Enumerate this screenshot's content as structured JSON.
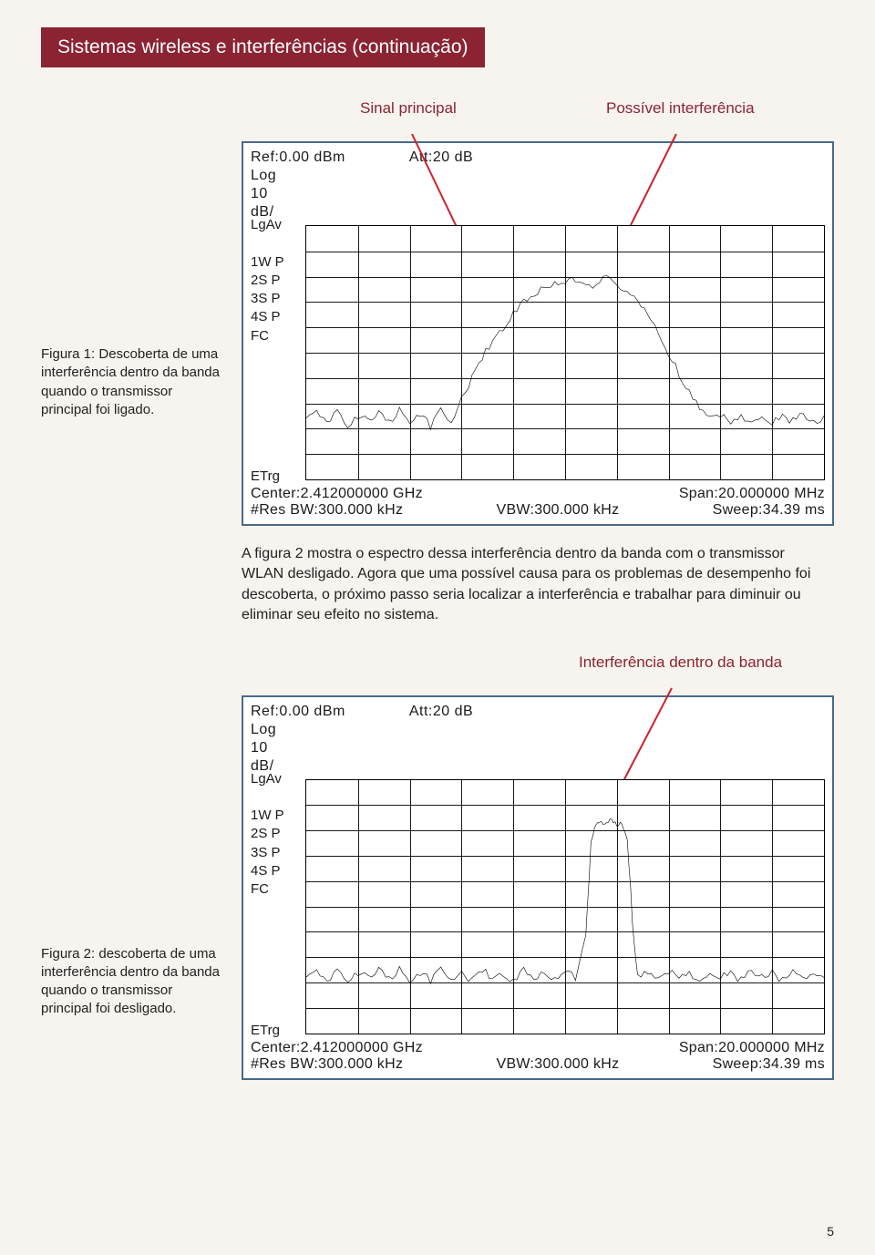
{
  "title": "Sistemas wireless e interferências (continuação)",
  "fig1": {
    "arrowLabels": {
      "left": "Sinal principal",
      "right": "Possível interferência"
    },
    "caption": "Figura 1: Descoberta de uma interferência dentro da banda quando o transmissor principal foi ligado.",
    "ref": "Ref:0.00 dBm",
    "att": "Att:20 dB",
    "scale": [
      "Log",
      "10",
      "dB/"
    ],
    "leftLabels": [
      "LgAv",
      "",
      "1W P",
      "2S P",
      "3S P",
      "4S P",
      "  FC"
    ],
    "etrg": "ETrg",
    "center": "Center:2.412000000 GHz",
    "span": "Span:20.000000 MHz",
    "rbw": "#Res BW:300.000 kHz",
    "vbw": "VBW:300.000 kHz",
    "sweep": "Sweep:34.39 ms",
    "grid": {
      "rows": 10,
      "cols": 10
    },
    "colors": {
      "border": "#4a6a88",
      "arrow": "#d0202a",
      "bg": "#ffffff"
    },
    "trace": [
      [
        0,
        76
      ],
      [
        2,
        74
      ],
      [
        4,
        78
      ],
      [
        6,
        73
      ],
      [
        8,
        79
      ],
      [
        10,
        75
      ],
      [
        12,
        77
      ],
      [
        14,
        74
      ],
      [
        16,
        78
      ],
      [
        18,
        72
      ],
      [
        20,
        78
      ],
      [
        22,
        74
      ],
      [
        24,
        79
      ],
      [
        26,
        73
      ],
      [
        28,
        77
      ],
      [
        30,
        68
      ],
      [
        32,
        60
      ],
      [
        34,
        52
      ],
      [
        36,
        45
      ],
      [
        38,
        40
      ],
      [
        40,
        34
      ],
      [
        42,
        30
      ],
      [
        44,
        27
      ],
      [
        46,
        24
      ],
      [
        48,
        23
      ],
      [
        50,
        22
      ],
      [
        52,
        21
      ],
      [
        54,
        22
      ],
      [
        56,
        24
      ],
      [
        58,
        20
      ],
      [
        60,
        23
      ],
      [
        62,
        26
      ],
      [
        64,
        30
      ],
      [
        66,
        35
      ],
      [
        68,
        42
      ],
      [
        70,
        50
      ],
      [
        72,
        58
      ],
      [
        74,
        66
      ],
      [
        76,
        72
      ],
      [
        78,
        76
      ],
      [
        80,
        74
      ],
      [
        82,
        78
      ],
      [
        84,
        75
      ],
      [
        86,
        77
      ],
      [
        88,
        74
      ],
      [
        90,
        78
      ],
      [
        92,
        75
      ],
      [
        94,
        77
      ],
      [
        96,
        74
      ],
      [
        98,
        78
      ],
      [
        100,
        76
      ]
    ],
    "noise": 3
  },
  "bodyText": "A figura 2 mostra o espectro dessa interferência dentro da banda com o transmissor WLAN desligado. Agora que uma possível causa para os problemas de desempenho foi descoberta, o próximo passo seria localizar a interferência e trabalhar para diminuir ou eliminar seu efeito no sistema.",
  "fig2": {
    "arrowLabel": "Interferência dentro da banda",
    "caption": "Figura 2: descoberta de uma interferência dentro da banda quando o transmissor principal foi desligado.",
    "ref": "Ref:0.00 dBm",
    "att": "Att:20 dB",
    "scale": [
      "Log",
      "10",
      "dB/"
    ],
    "leftLabels": [
      "LgAv",
      "",
      "1W P",
      "2S P",
      "3S P",
      "4S P",
      "  FC"
    ],
    "etrg": "ETrg",
    "center": "Center:2.412000000 GHz",
    "span": "Span:20.000000 MHz",
    "rbw": "#Res BW:300.000 kHz",
    "vbw": "VBW:300.000 kHz",
    "sweep": "Sweep:34.39 ms",
    "grid": {
      "rows": 10,
      "cols": 10
    },
    "trace": [
      [
        0,
        78
      ],
      [
        2,
        76
      ],
      [
        4,
        80
      ],
      [
        6,
        75
      ],
      [
        8,
        79
      ],
      [
        10,
        76
      ],
      [
        12,
        78
      ],
      [
        14,
        75
      ],
      [
        16,
        79
      ],
      [
        18,
        74
      ],
      [
        20,
        80
      ],
      [
        22,
        76
      ],
      [
        24,
        79
      ],
      [
        26,
        75
      ],
      [
        28,
        78
      ],
      [
        30,
        76
      ],
      [
        32,
        79
      ],
      [
        34,
        75
      ],
      [
        36,
        78
      ],
      [
        38,
        76
      ],
      [
        40,
        79
      ],
      [
        42,
        75
      ],
      [
        44,
        78
      ],
      [
        46,
        76
      ],
      [
        48,
        79
      ],
      [
        50,
        75
      ],
      [
        52,
        78
      ],
      [
        54,
        60
      ],
      [
        55,
        25
      ],
      [
        56,
        18
      ],
      [
        57,
        16
      ],
      [
        58,
        17
      ],
      [
        59,
        16
      ],
      [
        60,
        18
      ],
      [
        61,
        17
      ],
      [
        62,
        22
      ],
      [
        63,
        55
      ],
      [
        64,
        78
      ],
      [
        66,
        76
      ],
      [
        68,
        79
      ],
      [
        70,
        75
      ],
      [
        72,
        78
      ],
      [
        74,
        76
      ],
      [
        76,
        79
      ],
      [
        78,
        75
      ],
      [
        80,
        78
      ],
      [
        82,
        76
      ],
      [
        84,
        79
      ],
      [
        86,
        75
      ],
      [
        88,
        78
      ],
      [
        90,
        76
      ],
      [
        92,
        79
      ],
      [
        94,
        75
      ],
      [
        96,
        78
      ],
      [
        98,
        76
      ],
      [
        100,
        78
      ]
    ],
    "noise": 3
  },
  "pageNumber": "5"
}
